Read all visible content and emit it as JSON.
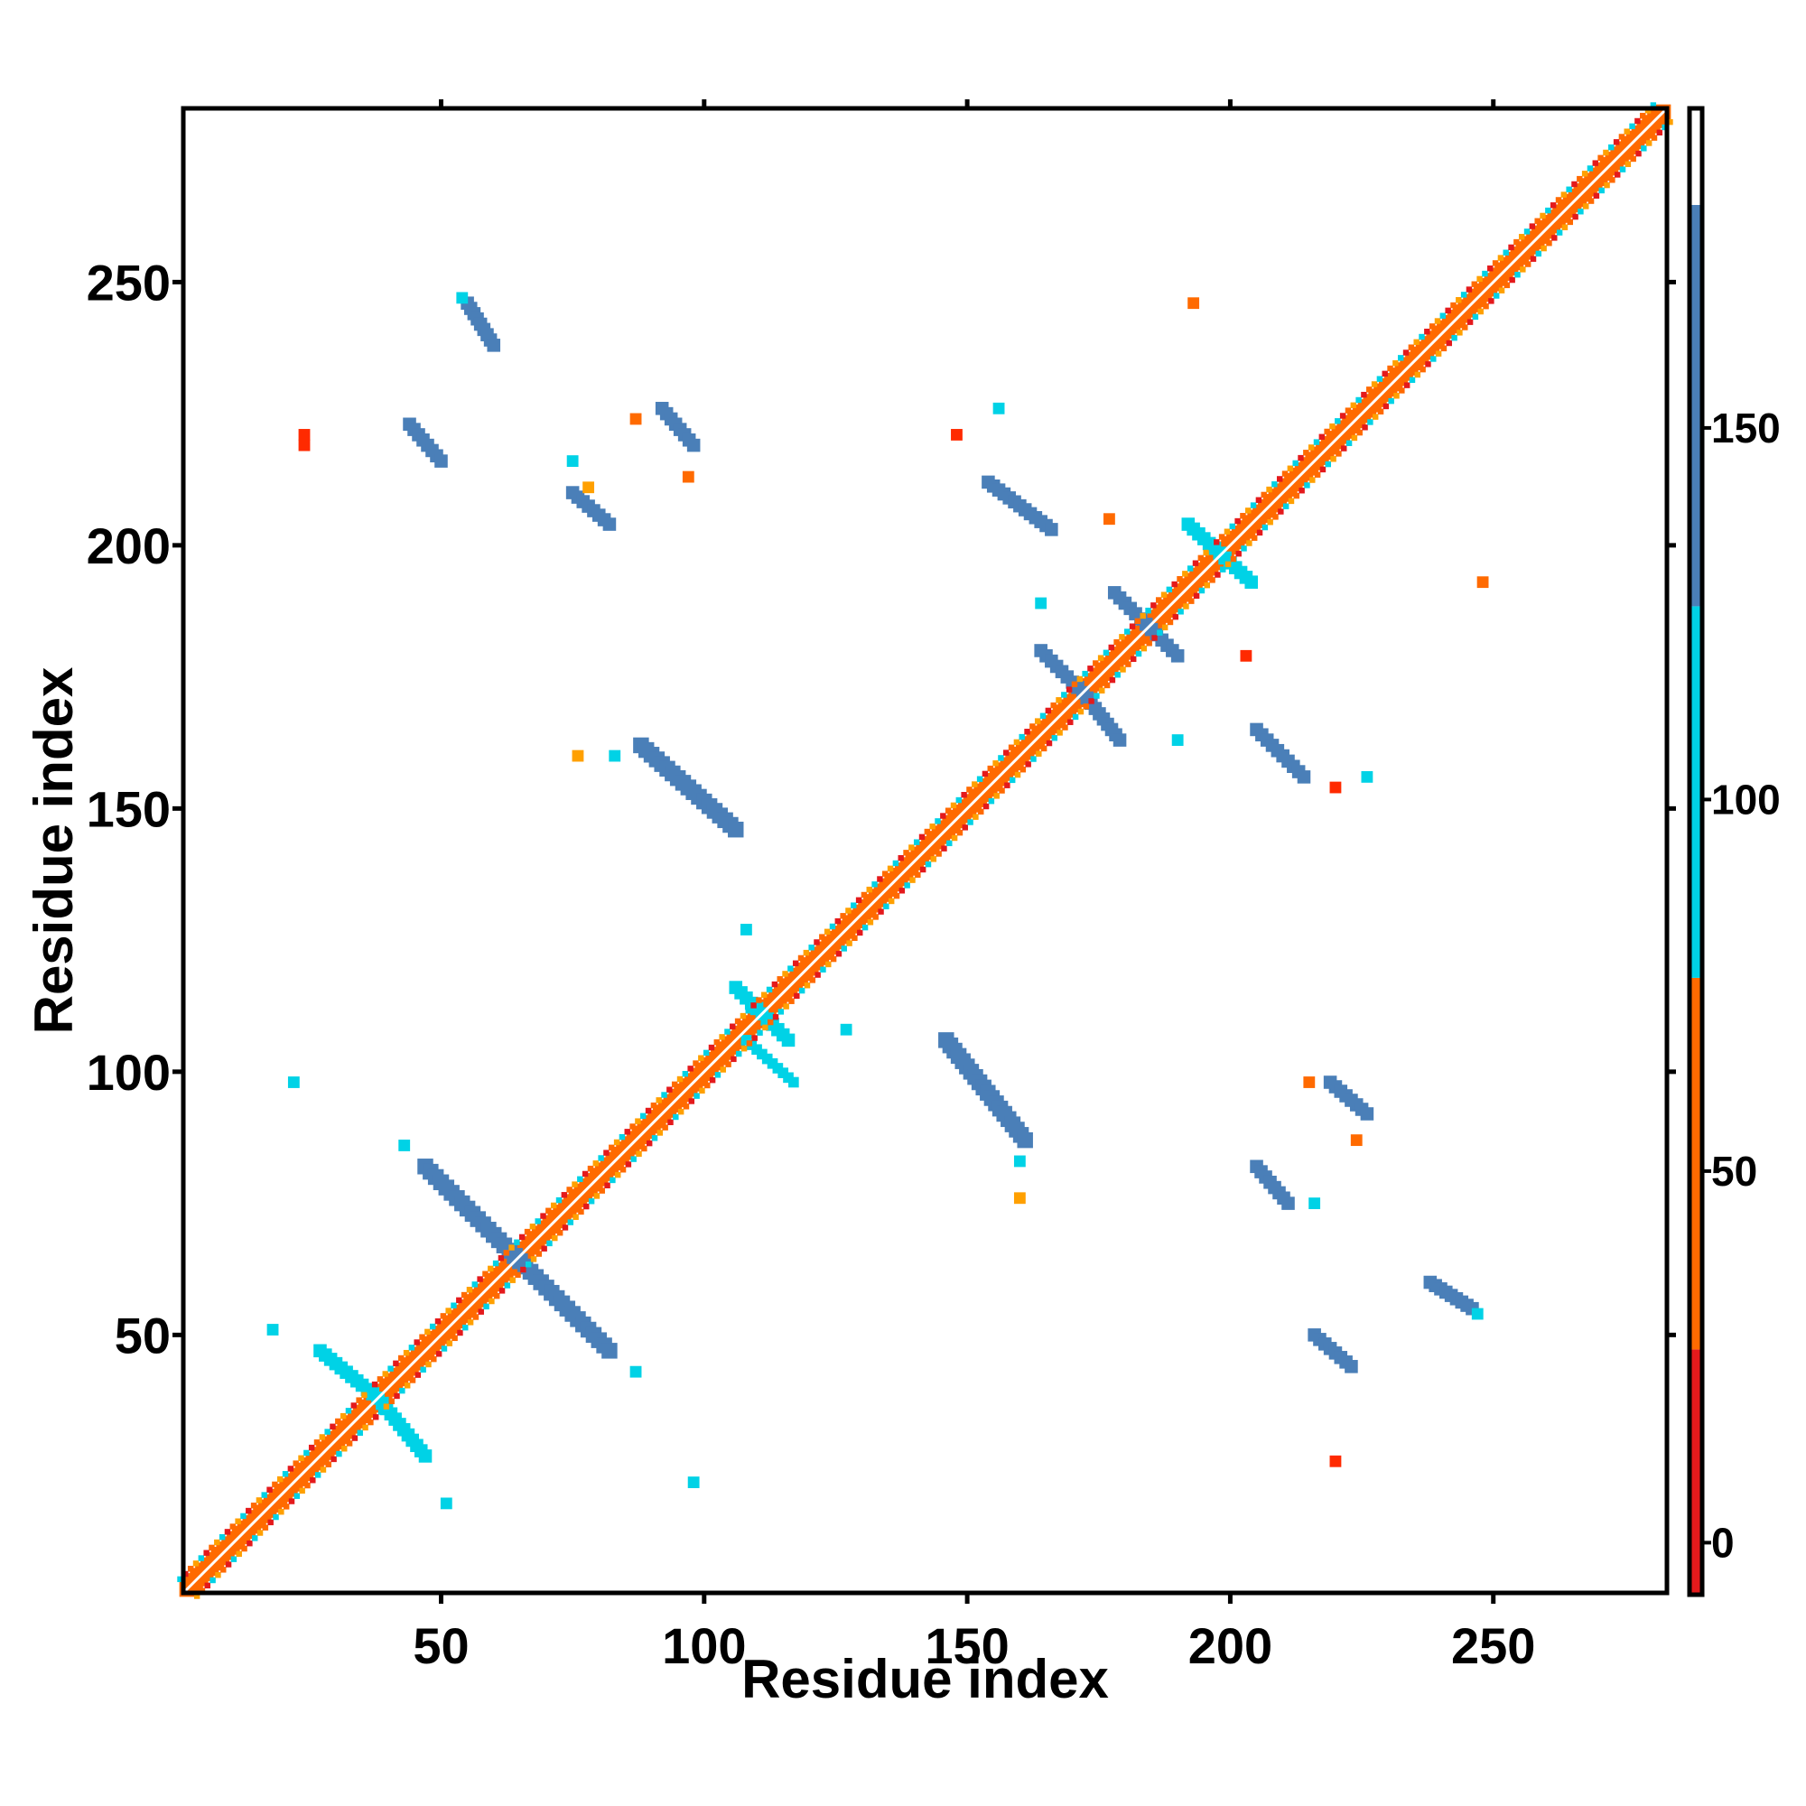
{
  "chart_data": {
    "type": "heatmap",
    "title": "",
    "xlabel": "Residue index",
    "ylabel": "Residue index",
    "xlim": [
      1,
      283
    ],
    "ylim": [
      1,
      283
    ],
    "x_ticks": [
      50,
      100,
      150,
      200,
      250
    ],
    "y_ticks": [
      50,
      100,
      150,
      200,
      250
    ],
    "colorbar": {
      "ticks": [
        0,
        50,
        100,
        150
      ],
      "range": [
        -7,
        193
      ],
      "segments": [
        {
          "from": -7,
          "to": 26,
          "color": "#e41a1c"
        },
        {
          "from": 26,
          "to": 76,
          "color": "#ff6a00"
        },
        {
          "from": 76,
          "to": 126,
          "color": "#00d2e6"
        },
        {
          "from": 126,
          "to": 180,
          "color": "#4a7fb8"
        },
        {
          "from": 180,
          "to": 193,
          "color": "#ffffff"
        }
      ]
    },
    "colors": {
      "red": "#e41a1c",
      "orange": "#ff6a00",
      "amber": "#ffa000",
      "cyan": "#00d2e6",
      "steel": "#4a7fb8"
    },
    "contacts": [
      {
        "name": "diagonal-band",
        "start": [
          2,
          2
        ],
        "end": [
          282,
          282
        ],
        "width": 3.5,
        "color": "#ff6a00"
      },
      {
        "name": "cross-40-left",
        "start": [
          27,
          47
        ],
        "end": [
          38,
          38
        ],
        "width": 2.5,
        "color": "#00d2e6"
      },
      {
        "name": "cross-40-right",
        "start": [
          38,
          38
        ],
        "end": [
          47,
          27
        ],
        "width": 2.5,
        "color": "#00d2e6"
      },
      {
        "name": "cross-65-left",
        "start": [
          47,
          82
        ],
        "end": [
          64,
          65
        ],
        "width": 3,
        "color": "#4a7fb8"
      },
      {
        "name": "cross-65-right",
        "start": [
          64,
          65
        ],
        "end": [
          82,
          47
        ],
        "width": 3,
        "color": "#4a7fb8"
      },
      {
        "name": "cross-110",
        "start": [
          106,
          116
        ],
        "end": [
          116,
          106
        ],
        "width": 2.5,
        "color": "#00d2e6"
      },
      {
        "name": "strand-145-90",
        "start": [
          146,
          106
        ],
        "end": [
          161,
          87
        ],
        "width": 3,
        "color": "#4a7fb8"
      },
      {
        "name": "strand-90-145",
        "start": [
          88,
          162
        ],
        "end": [
          106,
          146
        ],
        "width": 3,
        "color": "#4a7fb8"
      },
      {
        "name": "cross-172-left",
        "start": [
          164,
          180
        ],
        "end": [
          172,
          172
        ],
        "width": 2.5,
        "color": "#4a7fb8"
      },
      {
        "name": "cross-172-right",
        "start": [
          172,
          172
        ],
        "end": [
          179,
          163
        ],
        "width": 2.5,
        "color": "#4a7fb8"
      },
      {
        "name": "cross-185",
        "start": [
          178,
          191
        ],
        "end": [
          190,
          179
        ],
        "width": 2.5,
        "color": "#4a7fb8"
      },
      {
        "name": "cross-198",
        "start": [
          192,
          204
        ],
        "end": [
          204,
          193
        ],
        "width": 2.5,
        "color": "#00d2e6"
      },
      {
        "name": "strand-205-160",
        "start": [
          205,
          165
        ],
        "end": [
          214,
          156
        ],
        "width": 2.5,
        "color": "#4a7fb8"
      },
      {
        "name": "strand-160-210",
        "start": [
          154,
          212
        ],
        "end": [
          166,
          203
        ],
        "width": 2.5,
        "color": "#4a7fb8"
      },
      {
        "name": "strand-207-78",
        "start": [
          205,
          82
        ],
        "end": [
          211,
          75
        ],
        "width": 2.5,
        "color": "#4a7fb8"
      },
      {
        "name": "strand-78-208",
        "start": [
          75,
          210
        ],
        "end": [
          82,
          204
        ],
        "width": 2.5,
        "color": "#4a7fb8"
      },
      {
        "name": "strand-222-95",
        "start": [
          219,
          98
        ],
        "end": [
          226,
          92
        ],
        "width": 2.5,
        "color": "#4a7fb8"
      },
      {
        "name": "strand-95-222",
        "start": [
          92,
          226
        ],
        "end": [
          98,
          219
        ],
        "width": 2.5,
        "color": "#4a7fb8"
      },
      {
        "name": "strand-243-58",
        "start": [
          238,
          60
        ],
        "end": [
          246,
          55
        ],
        "width": 2.5,
        "color": "#4a7fb8"
      },
      {
        "name": "strand-58-243",
        "start": [
          55,
          246
        ],
        "end": [
          60,
          238
        ],
        "width": 2.5,
        "color": "#4a7fb8"
      },
      {
        "name": "strand-220-48",
        "start": [
          216,
          50
        ],
        "end": [
          223,
          44
        ],
        "width": 2.5,
        "color": "#4a7fb8"
      },
      {
        "name": "strand-48-220",
        "start": [
          44,
          223
        ],
        "end": [
          50,
          216
        ],
        "width": 2.5,
        "color": "#4a7fb8"
      },
      {
        "name": "cluster-105-95",
        "start": [
          108,
          106
        ],
        "end": [
          117,
          98
        ],
        "width": 2,
        "color": "#00d2e6"
      }
    ],
    "patches": [
      {
        "x": 24,
        "y": 221,
        "color": "#ff2a00"
      },
      {
        "x": 24,
        "y": 219,
        "color": "#ff2a00"
      },
      {
        "x": 97,
        "y": 213,
        "color": "#ff6a00"
      },
      {
        "x": 78,
        "y": 211,
        "color": "#ffa000"
      },
      {
        "x": 220,
        "y": 26,
        "color": "#ff2a00"
      },
      {
        "x": 215,
        "y": 98,
        "color": "#ff6a00"
      },
      {
        "x": 193,
        "y": 246,
        "color": "#ff6a00"
      },
      {
        "x": 248,
        "y": 193,
        "color": "#ff6a00"
      },
      {
        "x": 220,
        "y": 154,
        "color": "#ff2a00"
      },
      {
        "x": 148,
        "y": 221,
        "color": "#ff2a00"
      },
      {
        "x": 203,
        "y": 179,
        "color": "#ff2a00"
      },
      {
        "x": 177,
        "y": 205,
        "color": "#ff6a00"
      },
      {
        "x": 164,
        "y": 189,
        "color": "#00d2e6"
      },
      {
        "x": 190,
        "y": 163,
        "color": "#00d2e6"
      },
      {
        "x": 22,
        "y": 98,
        "color": "#00d2e6"
      },
      {
        "x": 98,
        "y": 22,
        "color": "#00d2e6"
      },
      {
        "x": 87,
        "y": 43,
        "color": "#00d2e6"
      },
      {
        "x": 43,
        "y": 86,
        "color": "#00d2e6"
      },
      {
        "x": 160,
        "y": 83,
        "color": "#00d2e6"
      },
      {
        "x": 83,
        "y": 160,
        "color": "#00d2e6"
      },
      {
        "x": 226,
        "y": 156,
        "color": "#00d2e6"
      },
      {
        "x": 156,
        "y": 226,
        "color": "#00d2e6"
      },
      {
        "x": 18,
        "y": 51,
        "color": "#00d2e6"
      },
      {
        "x": 51,
        "y": 18,
        "color": "#00d2e6"
      },
      {
        "x": 247,
        "y": 54,
        "color": "#00d2e6"
      },
      {
        "x": 54,
        "y": 247,
        "color": "#00d2e6"
      },
      {
        "x": 216,
        "y": 75,
        "color": "#00d2e6"
      },
      {
        "x": 75,
        "y": 216,
        "color": "#00d2e6"
      },
      {
        "x": 127,
        "y": 108,
        "color": "#00d2e6"
      },
      {
        "x": 108,
        "y": 127,
        "color": "#00d2e6"
      },
      {
        "x": 224,
        "y": 87,
        "color": "#ff6a00"
      },
      {
        "x": 87,
        "y": 224,
        "color": "#ff6a00"
      },
      {
        "x": 160,
        "y": 76,
        "color": "#ffa000"
      },
      {
        "x": 76,
        "y": 160,
        "color": "#ffa000"
      }
    ]
  }
}
